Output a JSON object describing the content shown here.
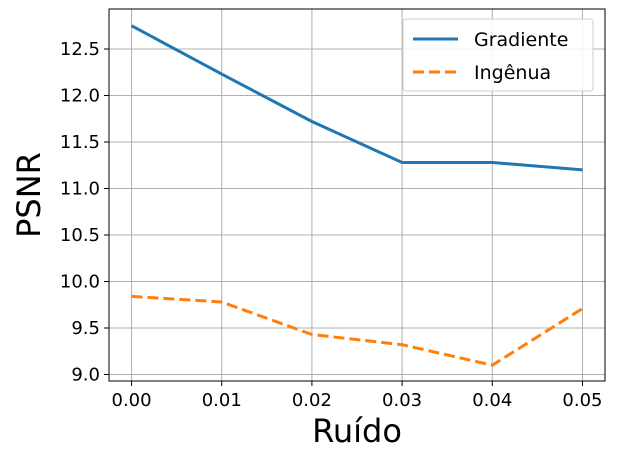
{
  "chart_data": {
    "type": "line",
    "title": "",
    "xlabel": "Ruído",
    "ylabel": "PSNR",
    "x": [
      0.0,
      0.01,
      0.02,
      0.03,
      0.04,
      0.05
    ],
    "x_tick_labels": [
      "0.00",
      "0.01",
      "0.02",
      "0.03",
      "0.04",
      "0.05"
    ],
    "y_ticks": [
      9.0,
      9.5,
      10.0,
      10.5,
      11.0,
      11.5,
      12.0,
      12.5
    ],
    "y_tick_labels": [
      "9.0",
      "9.5",
      "10.0",
      "10.5",
      "11.0",
      "11.5",
      "12.0",
      "12.5"
    ],
    "xlim": [
      -0.0025,
      0.0525
    ],
    "ylim": [
      8.93,
      12.93
    ],
    "grid": true,
    "legend_position": "top-right",
    "series": [
      {
        "name": "Gradiente",
        "values": [
          12.75,
          12.23,
          11.72,
          11.28,
          11.28,
          11.2
        ],
        "color": "#1f77b4",
        "style": "solid"
      },
      {
        "name": "Ingênua",
        "values": [
          9.84,
          9.78,
          9.43,
          9.32,
          9.1,
          9.71
        ],
        "color": "#ff7f0e",
        "style": "dashed"
      }
    ]
  }
}
